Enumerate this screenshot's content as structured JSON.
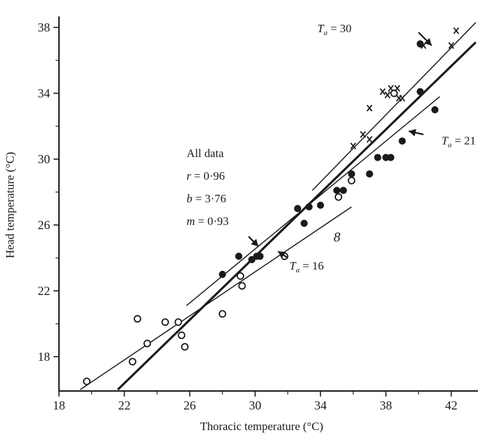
{
  "chart_data": {
    "type": "scatter",
    "title": "",
    "xlabel": "Thoracic temperature (°C)",
    "ylabel": "Head temperature (°C)",
    "xlim": [
      18,
      43.5
    ],
    "ylim": [
      16,
      38.5
    ],
    "xticks": [
      18,
      22,
      26,
      30,
      34,
      38,
      42
    ],
    "yticks": [
      18,
      22,
      26,
      30,
      34,
      38
    ],
    "grid": false,
    "legend": "none",
    "series": [
      {
        "marker": "open-circle",
        "points": [
          [
            19.7,
            16.5
          ],
          [
            22.5,
            17.7
          ],
          [
            22.8,
            20.3
          ],
          [
            23.4,
            18.8
          ],
          [
            24.5,
            20.1
          ],
          [
            25.3,
            20.1
          ],
          [
            25.5,
            19.3
          ],
          [
            25.7,
            18.6
          ],
          [
            28.0,
            20.6
          ],
          [
            29.1,
            22.9
          ],
          [
            29.2,
            22.3
          ],
          [
            31.8,
            24.1
          ],
          [
            35.1,
            27.7
          ],
          [
            35.9,
            28.7
          ],
          [
            38.5,
            34.0
          ]
        ]
      },
      {
        "marker": "filled-circle",
        "points": [
          [
            28.0,
            23.0
          ],
          [
            29.0,
            24.1
          ],
          [
            29.8,
            23.9
          ],
          [
            30.1,
            24.1
          ],
          [
            30.3,
            24.1
          ],
          [
            32.6,
            27.0
          ],
          [
            33.0,
            26.1
          ],
          [
            33.3,
            27.1
          ],
          [
            34.0,
            27.2
          ],
          [
            35.0,
            28.1
          ],
          [
            35.4,
            28.1
          ],
          [
            35.9,
            29.1
          ],
          [
            37.0,
            29.1
          ],
          [
            37.5,
            30.1
          ],
          [
            38.0,
            30.1
          ],
          [
            38.3,
            30.1
          ],
          [
            39.0,
            31.1
          ],
          [
            40.1,
            34.1
          ],
          [
            41.0,
            33.0
          ],
          [
            40.1,
            37.0
          ]
        ]
      },
      {
        "marker": "cross",
        "points": [
          [
            36.0,
            30.8
          ],
          [
            36.6,
            31.5
          ],
          [
            37.0,
            33.1
          ],
          [
            37.0,
            31.2
          ],
          [
            37.8,
            34.1
          ],
          [
            38.1,
            33.9
          ],
          [
            38.3,
            34.3
          ],
          [
            38.7,
            34.3
          ],
          [
            38.8,
            33.7
          ],
          [
            39.0,
            33.7
          ],
          [
            40.3,
            36.9
          ],
          [
            42.0,
            36.9
          ],
          [
            42.3,
            37.8
          ]
        ]
      }
    ],
    "lines": [
      {
        "label": "All data",
        "x": [
          21.6,
          43.5
        ],
        "y": [
          16.0,
          37.1
        ],
        "weight": "bold"
      },
      {
        "label": "T_a = 30",
        "x": [
          33.5,
          43.5
        ],
        "y": [
          28.1,
          38.3
        ],
        "weight": "thin"
      },
      {
        "label": "T_a = 21",
        "x": [
          25.8,
          41.3
        ],
        "y": [
          21.1,
          33.8
        ],
        "weight": "thin"
      },
      {
        "label": "T_a = 16",
        "x": [
          19.3,
          35.9
        ],
        "y": [
          16.0,
          27.1
        ],
        "weight": "thin"
      }
    ],
    "annotations": {
      "stats": [
        "All data",
        "r = 0·96",
        "b = 3·76",
        "m = 0·93"
      ],
      "ta_label_subscript": "a",
      "ta_labels": [
        {
          "prefix": "T",
          "suffix": " = 30",
          "at": [
            33.8,
            37.7
          ],
          "arrow_to": [
            40.8,
            36.9
          ],
          "arrow_from": [
            40.0,
            37.7
          ]
        },
        {
          "prefix": "T",
          "suffix": " = 21",
          "at": [
            41.4,
            30.9
          ],
          "arrow_to": [
            39.4,
            31.7
          ],
          "arrow_from": [
            40.3,
            31.5
          ]
        },
        {
          "prefix": "T",
          "suffix": " = 16",
          "at": [
            32.1,
            23.3
          ],
          "arrow_to": [
            31.4,
            24.4
          ],
          "arrow_from": [
            32.0,
            24.0
          ]
        }
      ],
      "stats_arrow": {
        "arrow_to": [
          30.2,
          24.7
        ],
        "arrow_from": [
          29.6,
          25.3
        ]
      },
      "glyph_8": {
        "text": "8",
        "at": [
          34.8,
          25.0
        ]
      }
    }
  }
}
